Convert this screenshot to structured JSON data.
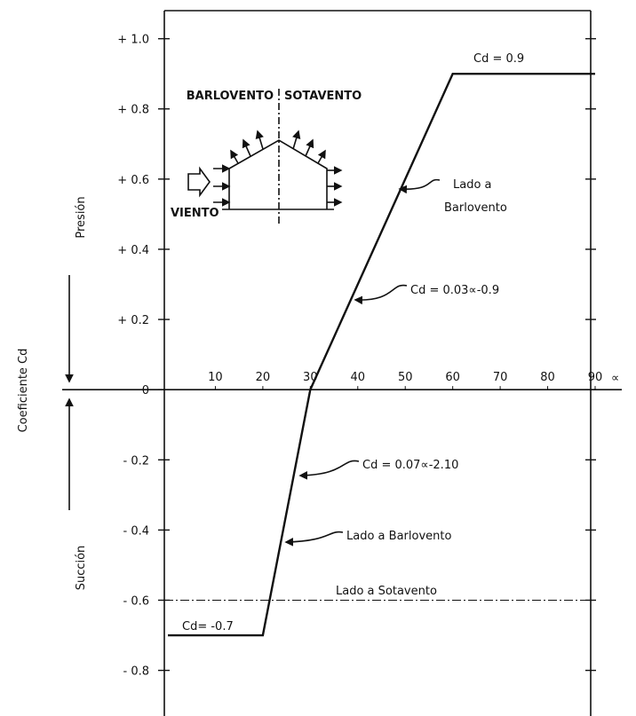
{
  "chart_data": {
    "type": "line",
    "x": [
      0,
      20,
      30,
      60,
      90
    ],
    "series": [
      {
        "color": "#111111",
        "values": [
          -0.7,
          -0.7,
          0,
          0.9,
          0.9
        ]
      }
    ],
    "xlim": [
      0,
      90
    ],
    "ylim": [
      -0.93,
      1.08
    ],
    "xticks": [
      10,
      20,
      30,
      40,
      50,
      60,
      70,
      80,
      90
    ],
    "yticks": [
      {
        "value": 1.0,
        "label": "+ 1.0"
      },
      {
        "value": 0.8,
        "label": "+ 0.8"
      },
      {
        "value": 0.6,
        "label": "+ 0.6"
      },
      {
        "value": 0.4,
        "label": "+ 0.4"
      },
      {
        "value": 0.2,
        "label": "+ 0.2"
      },
      0,
      {
        "value": -0.2,
        "label": "- 0.2"
      },
      {
        "value": -0.4,
        "label": "- 0.4"
      },
      {
        "value": -0.6,
        "label": "- 0.6"
      },
      {
        "value": -0.8,
        "label": "- 0.8"
      }
    ],
    "grid": false,
    "xlabel": "∝",
    "ylabel": "Coeficiente Cd",
    "ylabel_top": "Presión",
    "ylabel_bottom": "Succión",
    "reference_line": -0.6,
    "annotations": [
      "Cd = 0.9",
      "Lado a",
      "Barlovento",
      "Cd = 0.03∝-0.9",
      "Cd = 0.07∝-2.10",
      "Lado a Barlovento",
      "Lado a Sotavento",
      "Cd= -0.7"
    ],
    "inset": {
      "left": "BARLOVENTO",
      "right": "SOTAVENTO",
      "wind": "VIENTO"
    }
  }
}
